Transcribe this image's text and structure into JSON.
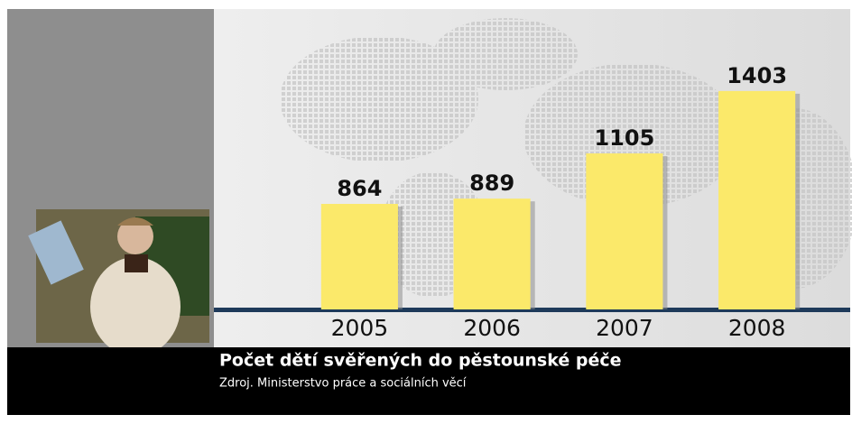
{
  "chart_data": {
    "type": "bar",
    "title": "Počet dětí svěřených do pěstounské péče",
    "subtitle": "Zdroj. Ministerstvo práce a sociálních věcí",
    "categories": [
      "2005",
      "2006",
      "2007",
      "2008"
    ],
    "values": [
      864,
      889,
      1105,
      1403
    ],
    "color": "#fbe96a",
    "ylim": [
      360,
      1450
    ]
  }
}
